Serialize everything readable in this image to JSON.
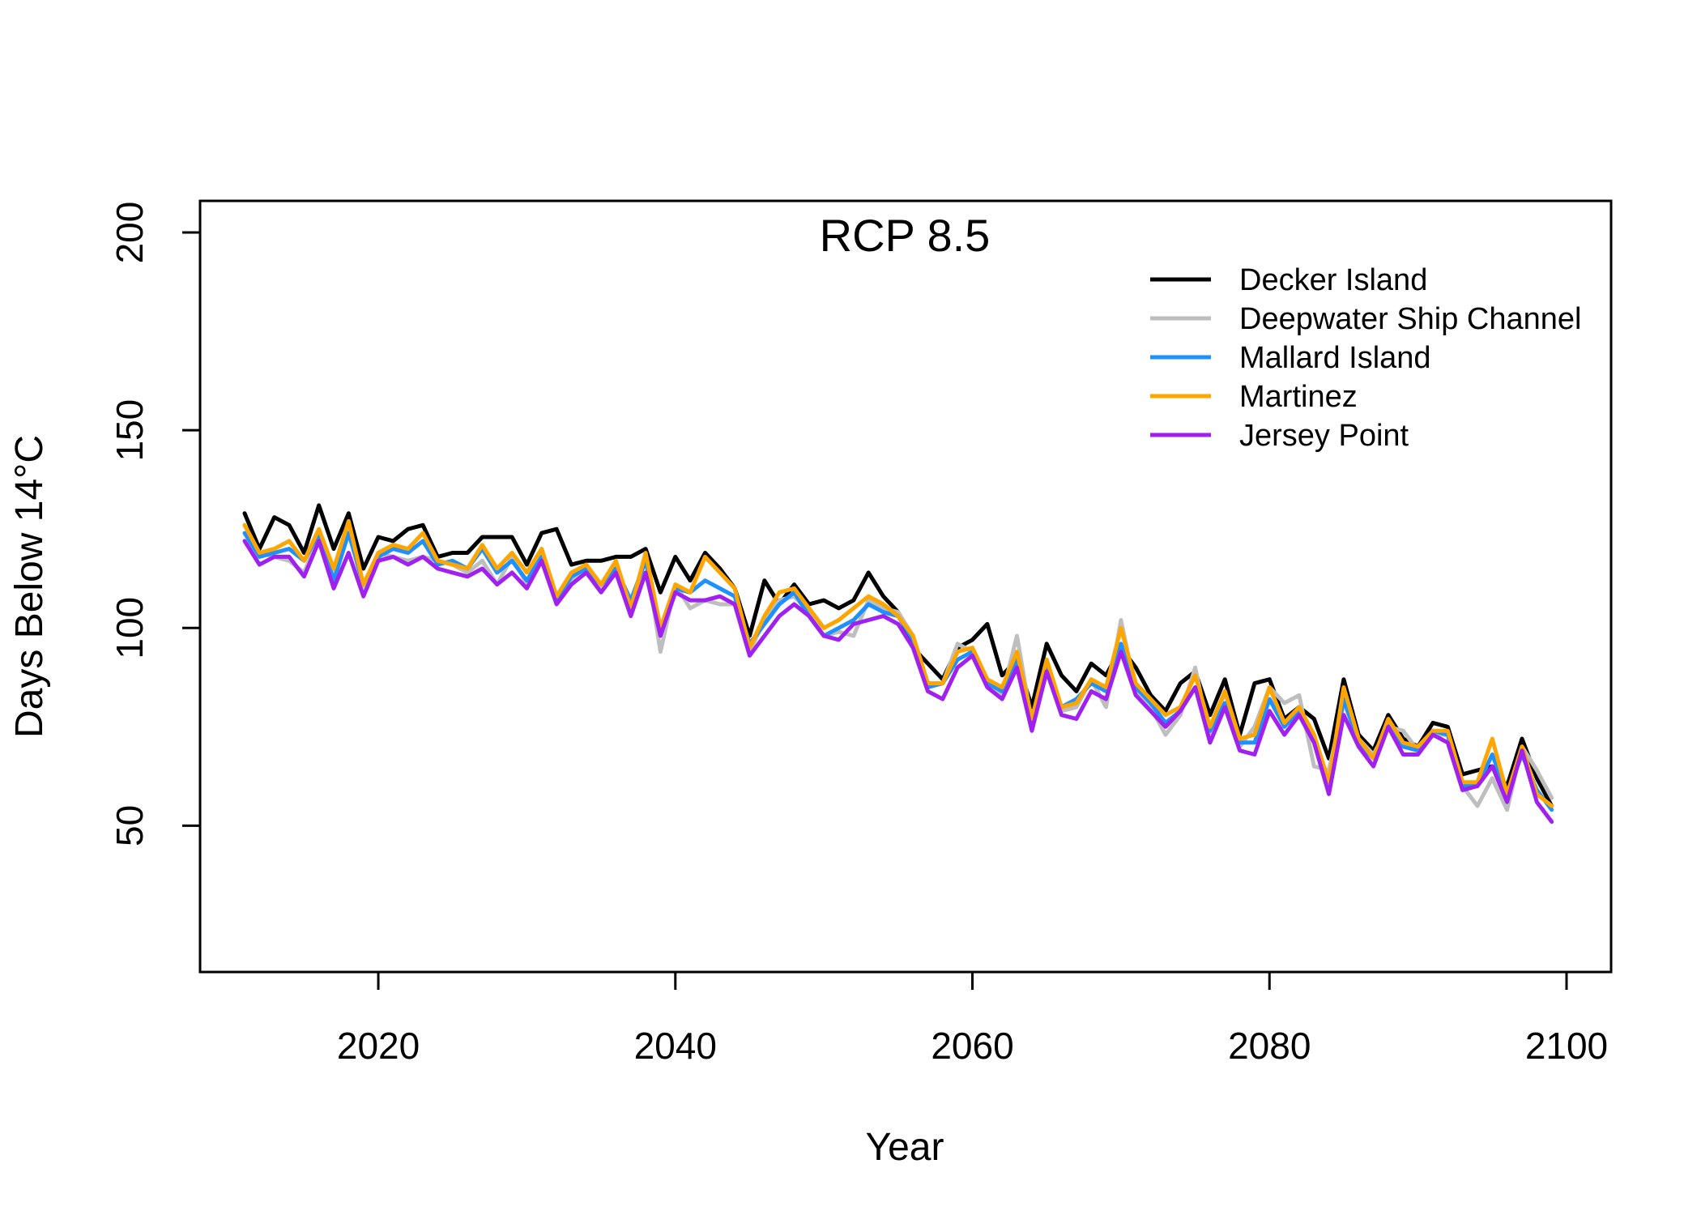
{
  "chart_data": {
    "type": "line",
    "title": "RCP 8.5",
    "xlabel": "Year",
    "ylabel": "Days Below 14°C",
    "xlim": [
      2008,
      2103
    ],
    "ylim": [
      13,
      208
    ],
    "xticks": [
      2020,
      2040,
      2060,
      2080,
      2100
    ],
    "yticks": [
      50,
      100,
      150,
      200
    ],
    "grid": false,
    "legend_position": "top-right",
    "x_start": 2011,
    "series": [
      {
        "name": "Decker Island",
        "color": "#000000",
        "values": [
          129,
          120,
          128,
          126,
          119,
          131,
          120,
          129,
          115,
          123,
          122,
          125,
          126,
          118,
          119,
          119,
          123,
          123,
          123,
          116,
          124,
          125,
          116,
          117,
          117,
          118,
          118,
          120,
          109,
          118,
          112,
          119,
          115,
          110,
          98,
          112,
          106,
          111,
          106,
          107,
          105,
          107,
          114,
          108,
          104,
          95,
          91,
          87,
          95,
          97,
          101,
          88,
          92,
          80,
          96,
          88,
          84,
          91,
          88,
          95,
          90,
          83,
          79,
          86,
          89,
          78,
          87,
          73,
          86,
          87,
          77,
          80,
          77,
          67,
          87,
          73,
          69,
          78,
          72,
          70,
          76,
          75,
          63,
          64,
          65,
          60,
          72,
          62,
          55
        ]
      },
      {
        "name": "Deepwater Ship Channel",
        "color": "#bebebe",
        "values": [
          126,
          119,
          118,
          117,
          114,
          123,
          113,
          125,
          110,
          119,
          118,
          117,
          118,
          117,
          116,
          114,
          117,
          111,
          118,
          111,
          120,
          108,
          112,
          115,
          110,
          116,
          104,
          118,
          94,
          111,
          105,
          107,
          106,
          106,
          94,
          102,
          107,
          108,
          104,
          98,
          99,
          98,
          107,
          105,
          104,
          98,
          86,
          86,
          96,
          94,
          86,
          83,
          98,
          76,
          91,
          79,
          80,
          87,
          80,
          102,
          84,
          80,
          73,
          78,
          90,
          72,
          84,
          70,
          75,
          85,
          81,
          83,
          65,
          64,
          81,
          72,
          68,
          75,
          74,
          69,
          73,
          73,
          60,
          55,
          62,
          54,
          70,
          64,
          57
        ]
      },
      {
        "name": "Mallard Island",
        "color": "#1e90ff",
        "values": [
          124,
          118,
          119,
          120,
          117,
          124,
          112,
          124,
          111,
          118,
          120,
          119,
          122,
          116,
          117,
          115,
          120,
          114,
          117,
          112,
          118,
          107,
          113,
          115,
          111,
          115,
          107,
          117,
          100,
          110,
          109,
          112,
          110,
          108,
          96,
          101,
          106,
          109,
          103,
          98,
          100,
          102,
          106,
          104,
          103,
          97,
          85,
          86,
          92,
          94,
          86,
          84,
          92,
          76,
          90,
          80,
          82,
          86,
          84,
          96,
          85,
          81,
          76,
          79,
          85,
          74,
          81,
          71,
          71,
          82,
          75,
          79,
          72,
          61,
          82,
          71,
          67,
          76,
          70,
          69,
          74,
          73,
          60,
          60,
          68,
          58,
          68,
          59,
          54
        ]
      },
      {
        "name": "Martinez",
        "color": "#ffa500",
        "values": [
          126,
          119,
          120,
          122,
          117,
          125,
          115,
          127,
          111,
          119,
          121,
          120,
          124,
          117,
          116,
          115,
          121,
          115,
          119,
          114,
          120,
          108,
          114,
          116,
          111,
          117,
          105,
          119,
          100,
          111,
          109,
          118,
          114,
          110,
          95,
          103,
          109,
          110,
          105,
          100,
          102,
          105,
          108,
          106,
          103,
          98,
          86,
          86,
          94,
          95,
          87,
          85,
          94,
          77,
          92,
          80,
          81,
          87,
          85,
          100,
          86,
          82,
          78,
          80,
          88,
          75,
          84,
          72,
          73,
          85,
          76,
          80,
          73,
          61,
          85,
          72,
          67,
          77,
          71,
          70,
          74,
          74,
          61,
          61,
          72,
          58,
          70,
          58,
          55
        ]
      },
      {
        "name": "Jersey Point",
        "color": "#a020f0",
        "values": [
          122,
          116,
          118,
          118,
          113,
          122,
          110,
          119,
          108,
          117,
          118,
          116,
          118,
          115,
          114,
          113,
          115,
          111,
          114,
          110,
          117,
          106,
          111,
          114,
          109,
          114,
          103,
          114,
          98,
          109,
          107,
          107,
          108,
          106,
          93,
          98,
          103,
          106,
          103,
          98,
          97,
          101,
          102,
          103,
          101,
          95,
          84,
          82,
          90,
          93,
          85,
          82,
          90,
          74,
          89,
          78,
          77,
          84,
          82,
          94,
          83,
          79,
          75,
          79,
          85,
          71,
          80,
          69,
          68,
          79,
          73,
          78,
          71,
          58,
          78,
          70,
          65,
          75,
          68,
          68,
          73,
          71,
          59,
          60,
          65,
          56,
          69,
          56,
          51
        ]
      }
    ]
  }
}
